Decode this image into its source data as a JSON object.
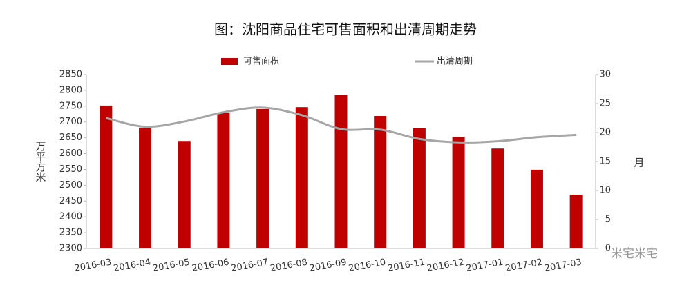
{
  "chart_data": {
    "type": "bar_line",
    "title": "图：沈阳商品住宅可售面积和出清周期走势",
    "y_label": "万平方米",
    "y2_label": "月",
    "watermark": "米宅米宅",
    "categories": [
      "2016-03",
      "2016-04",
      "2016-05",
      "2016-06",
      "2016-07",
      "2016-08",
      "2016-09",
      "2016-10",
      "2016-11",
      "2016-12",
      "2017-01",
      "2017-02",
      "2017-03"
    ],
    "series": [
      {
        "name": "可售面积",
        "color": "#c00000",
        "type": "bar",
        "values": [
          2752,
          2682,
          2640,
          2728,
          2741,
          2747,
          2785,
          2719,
          2680,
          2653,
          2616,
          2549,
          2470
        ]
      },
      {
        "name": "出清周期",
        "color": "#a6a6a6",
        "type": "line",
        "axis": "y2",
        "values": [
          22.5,
          21,
          21.9,
          23.5,
          24.3,
          23,
          20.6,
          20.5,
          18.9,
          18.3,
          18.5,
          19.2,
          19.6
        ]
      }
    ],
    "ylim": [
      2300,
      2850
    ],
    "yticks": [
      2300,
      2350,
      2400,
      2450,
      2500,
      2550,
      2600,
      2650,
      2700,
      2750,
      2800,
      2850
    ],
    "y2lim": [
      0,
      30
    ],
    "y2ticks": [
      0,
      5,
      10,
      15,
      20,
      25,
      30
    ],
    "legend": "top"
  }
}
